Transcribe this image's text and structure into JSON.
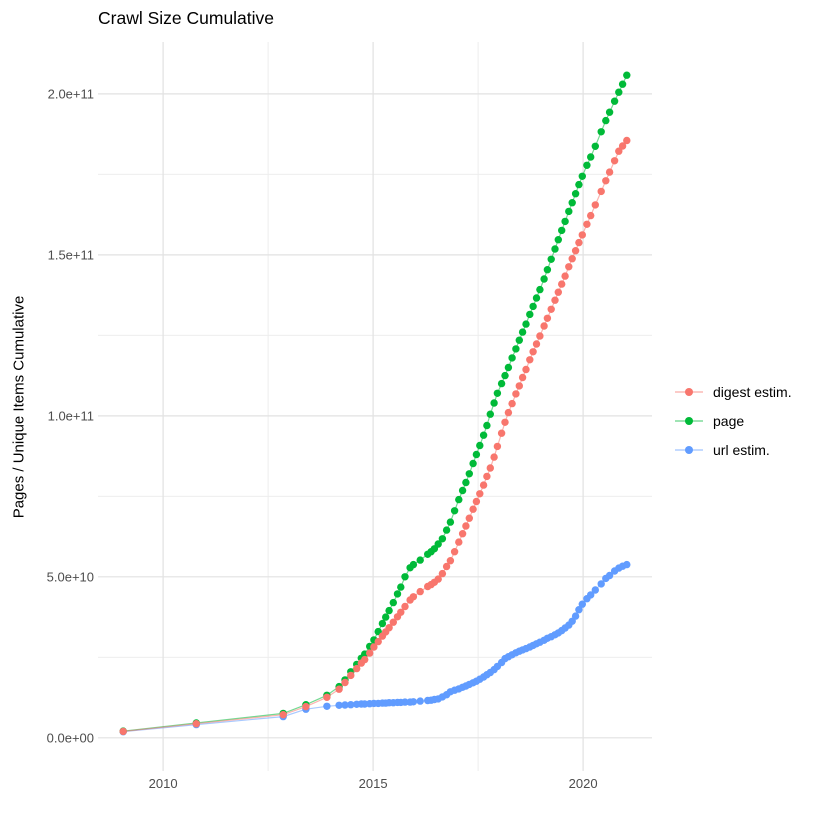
{
  "chart_data": {
    "type": "scatter",
    "title": "Crawl Size Cumulative",
    "xlabel": "",
    "ylabel": "Pages / Unique Items Cumulative",
    "value_unit": "1e9 (billions of pages / unique items)",
    "x_unit": "year (decimal)",
    "legend_position": "right",
    "grid": "on",
    "x_axis": {
      "range": [
        2008.45,
        2021.64
      ],
      "ticks": [
        {
          "label": "2010",
          "value": 2010
        },
        {
          "label": "2015",
          "value": 2015
        },
        {
          "label": "2020",
          "value": 2020
        }
      ],
      "minor": [
        2012.5,
        2017.5
      ]
    },
    "y_axis": {
      "range": [
        -10.3,
        216.1
      ],
      "ticks": [
        {
          "label": "0.0e+00",
          "value": 0
        },
        {
          "label": "5.0e+10",
          "value": 50
        },
        {
          "label": "1.0e+11",
          "value": 100
        },
        {
          "label": "1.5e+11",
          "value": 150
        },
        {
          "label": "2.0e+11",
          "value": 200
        }
      ],
      "minor": [
        25,
        75,
        125,
        175
      ]
    },
    "x": [
      2009.05,
      2010.79,
      2012.86,
      2013.4,
      2013.9,
      2014.19,
      2014.33,
      2014.47,
      2014.61,
      2014.72,
      2014.8,
      2014.92,
      2015.02,
      2015.12,
      2015.22,
      2015.3,
      2015.38,
      2015.48,
      2015.58,
      2015.66,
      2015.76,
      2015.88,
      2015.96,
      2016.12,
      2016.3,
      2016.38,
      2016.46,
      2016.55,
      2016.65,
      2016.75,
      2016.84,
      2016.94,
      2017.04,
      2017.13,
      2017.21,
      2017.29,
      2017.38,
      2017.46,
      2017.54,
      2017.63,
      2017.71,
      2017.79,
      2017.88,
      2017.96,
      2018.06,
      2018.14,
      2018.22,
      2018.31,
      2018.4,
      2018.48,
      2018.56,
      2018.64,
      2018.73,
      2018.81,
      2018.89,
      2018.97,
      2019.07,
      2019.15,
      2019.24,
      2019.33,
      2019.41,
      2019.49,
      2019.57,
      2019.66,
      2019.74,
      2019.82,
      2019.9,
      2019.98,
      2020.09,
      2020.18,
      2020.29,
      2020.43,
      2020.54,
      2020.63,
      2020.75,
      2020.85,
      2020.94,
      2021.04
    ],
    "series": [
      {
        "name": "digest estim.",
        "color": "#F8766D",
        "values": [
          2.0,
          4.4,
          7.2,
          9.7,
          12.6,
          15.1,
          17.2,
          19.4,
          21.5,
          23.2,
          24.3,
          26.3,
          28.2,
          29.9,
          31.6,
          32.9,
          34.2,
          35.9,
          37.6,
          39.0,
          40.8,
          42.8,
          43.8,
          45.4,
          47.0,
          47.6,
          48.3,
          49.3,
          51.0,
          53.2,
          55.0,
          57.8,
          60.8,
          63.4,
          65.8,
          68.2,
          71.0,
          73.4,
          75.8,
          78.5,
          81.2,
          83.8,
          87.2,
          90.5,
          94.6,
          98.0,
          101.0,
          103.8,
          106.8,
          109.3,
          111.9,
          114.4,
          117.4,
          119.9,
          122.3,
          124.8,
          127.9,
          130.3,
          133.1,
          135.9,
          138.4,
          140.9,
          143.4,
          146.3,
          148.8,
          151.3,
          153.8,
          156.2,
          159.5,
          162.2,
          165.5,
          169.7,
          173.0,
          175.7,
          179.2,
          182.2,
          183.8,
          185.5
        ]
      },
      {
        "name": "page",
        "color": "#00BA38",
        "values": [
          2.1,
          4.6,
          7.6,
          10.3,
          13.2,
          15.9,
          18.0,
          20.5,
          22.8,
          24.7,
          26.0,
          28.4,
          30.4,
          33.0,
          35.5,
          37.5,
          39.5,
          42.0,
          44.7,
          46.8,
          50.0,
          52.8,
          53.8,
          55.2,
          57.0,
          57.8,
          58.7,
          60.2,
          61.8,
          64.5,
          67.0,
          70.5,
          74.0,
          76.8,
          79.3,
          82.0,
          85.2,
          88.0,
          90.8,
          94.0,
          97.0,
          100.5,
          104.0,
          107.0,
          110.0,
          112.5,
          115.0,
          118.0,
          120.8,
          123.5,
          126.0,
          128.5,
          131.5,
          134.0,
          136.6,
          139.2,
          142.5,
          145.4,
          148.6,
          151.8,
          154.7,
          157.6,
          160.4,
          163.5,
          166.2,
          169.0,
          171.8,
          174.4,
          177.8,
          180.4,
          183.7,
          188.2,
          191.7,
          194.3,
          197.7,
          200.5,
          203.0,
          205.8
        ]
      },
      {
        "name": "url estim.",
        "color": "#619CFF",
        "values": [
          1.9,
          4.1,
          6.6,
          8.9,
          9.8,
          10.1,
          10.2,
          10.3,
          10.4,
          10.5,
          10.5,
          10.6,
          10.7,
          10.7,
          10.8,
          10.8,
          10.9,
          10.9,
          11.0,
          11.0,
          11.1,
          11.1,
          11.2,
          11.4,
          11.6,
          11.7,
          11.9,
          12.1,
          12.7,
          13.4,
          14.3,
          14.8,
          15.2,
          15.7,
          16.1,
          16.6,
          17.1,
          17.6,
          18.2,
          18.9,
          19.6,
          20.3,
          21.2,
          22.2,
          23.4,
          24.6,
          25.2,
          25.8,
          26.4,
          26.9,
          27.3,
          27.7,
          28.2,
          28.7,
          29.2,
          29.7,
          30.3,
          30.9,
          31.4,
          32.0,
          32.6,
          33.3,
          34.1,
          35.0,
          36.2,
          37.8,
          39.8,
          41.5,
          43.2,
          44.4,
          45.9,
          47.8,
          49.5,
          50.4,
          51.8,
          52.7,
          53.3,
          53.8
        ]
      }
    ],
    "style": {
      "grid_major_color": "#e2e2e2",
      "grid_minor_color": "#ececec",
      "tick_label_color": "#4d4d4d",
      "background": "#ffffff"
    }
  }
}
